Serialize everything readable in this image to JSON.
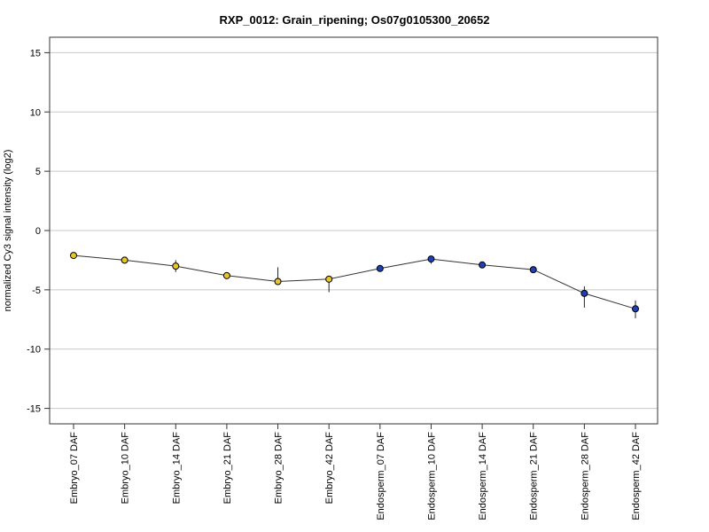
{
  "chart_data": {
    "type": "line",
    "title": "RXP_0012: Grain_ripening; Os07g0105300_20652",
    "xlabel": "",
    "ylabel": "normalized Cy3 signal intensity (log2)",
    "ylim": [
      -16.3,
      16.3
    ],
    "yticks": [
      -15,
      -10,
      -5,
      0,
      5,
      10,
      15
    ],
    "grid": "horizontal",
    "categories": [
      "Embryo_07 DAF",
      "Embryo_10 DAF",
      "Embryo_14 DAF",
      "Embryo_21 DAF",
      "Embryo_28 DAF",
      "Embryo_42 DAF",
      "Endosperm_07 DAF",
      "Endosperm_10 DAF",
      "Endosperm_14 DAF",
      "Endosperm_21 DAF",
      "Endosperm_28 DAF",
      "Endosperm_42 DAF"
    ],
    "series": [
      {
        "values": [
          -2.1,
          -2.5,
          -3.0,
          -3.8,
          -4.3,
          -4.1,
          -3.2,
          -2.4,
          -2.9,
          -3.3,
          -5.3,
          -6.6
        ],
        "error_low": [
          -2.1,
          -2.5,
          -3.5,
          -3.8,
          -4.3,
          -5.2,
          -3.2,
          -2.8,
          -2.9,
          -3.3,
          -6.5,
          -7.4
        ],
        "error_high": [
          -2.1,
          -2.5,
          -2.5,
          -3.8,
          -3.1,
          -3.9,
          -3.2,
          -2.2,
          -2.9,
          -3.3,
          -4.7,
          -5.9
        ],
        "marker_colors": [
          "#e8c62b",
          "#e8c62b",
          "#e8c62b",
          "#e8c62b",
          "#e8c62b",
          "#e8c62b",
          "#1f3fb5",
          "#1f3fb5",
          "#1f3fb5",
          "#1f3fb5",
          "#1f3fb5",
          "#1f3fb5"
        ]
      }
    ],
    "colors": {
      "embryo": "#e8c62b",
      "endosperm": "#1f3fb5",
      "line": "#333333",
      "grid": "#c8c8c8"
    }
  }
}
